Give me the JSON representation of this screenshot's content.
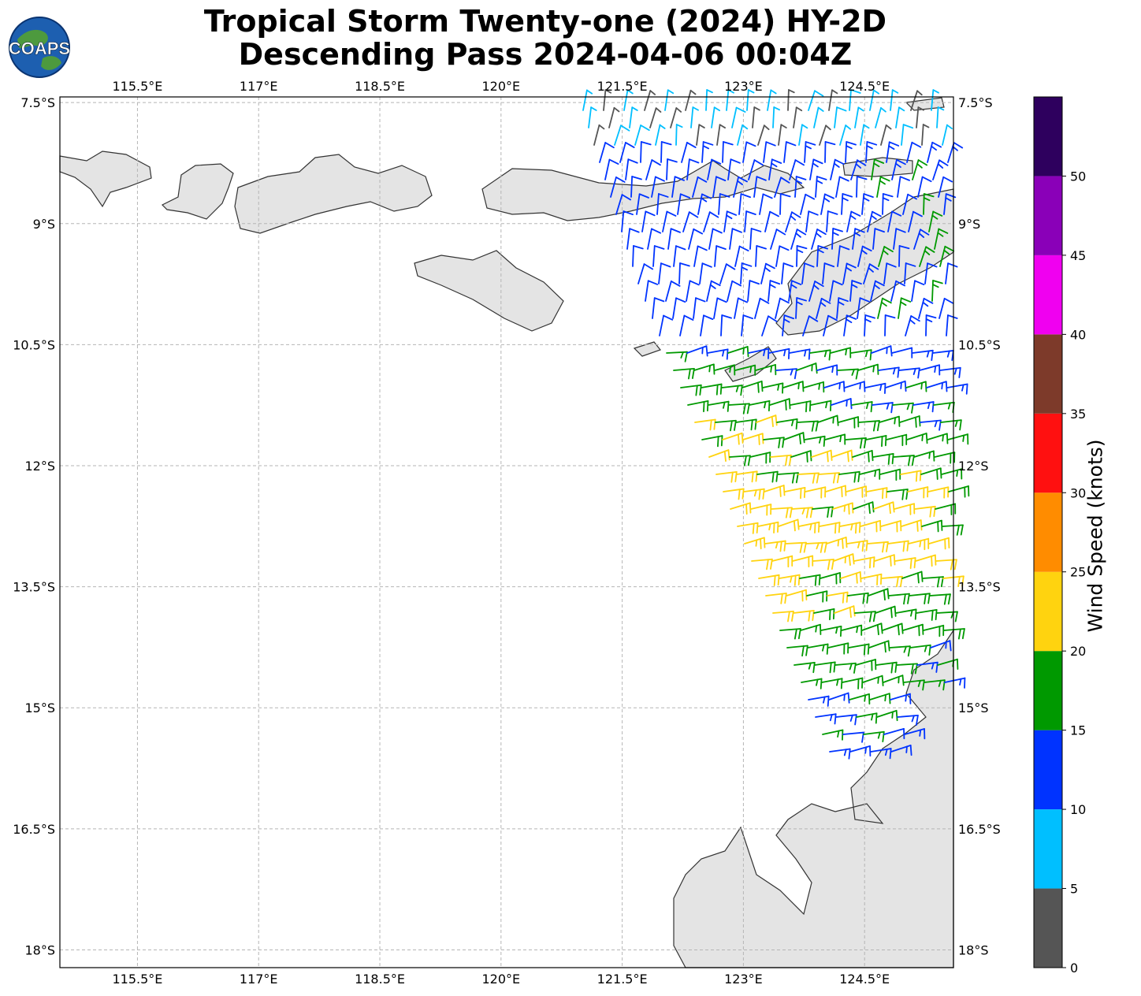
{
  "title": {
    "line1": "Tropical Storm Twenty-one (2024) HY-2D",
    "line2": "Descending Pass 2024-04-06 00:04Z"
  },
  "logo_text": "COAPS",
  "axes": {
    "lon_ticks": [
      "115.5°E",
      "117°E",
      "118.5°E",
      "120°E",
      "121.5°E",
      "123°E",
      "124.5°E"
    ],
    "lon_values": [
      115.5,
      117,
      118.5,
      120,
      121.5,
      123,
      124.5
    ],
    "lat_ticks": [
      "7.5°S",
      "9°S",
      "10.5°S",
      "12°S",
      "13.5°S",
      "15°S",
      "16.5°S",
      "18°S"
    ],
    "lat_values": [
      -7.5,
      -9,
      -10.5,
      -12,
      -13.5,
      -15,
      -16.5,
      -18
    ],
    "lon_range": [
      114.54,
      125.6
    ],
    "lat_range": [
      -7.43,
      -18.22
    ]
  },
  "colorbar": {
    "label": "Wind Speed (knots)",
    "tick_labels": [
      "0",
      "5",
      "10",
      "15",
      "20",
      "25",
      "30",
      "35",
      "40",
      "45",
      "50"
    ],
    "bins": [
      0,
      5,
      10,
      15,
      20,
      25,
      30,
      35,
      40,
      45,
      50,
      55
    ],
    "colors": [
      "#555555",
      "#00bfff",
      "#0033ff",
      "#009900",
      "#ffd30f",
      "#ff8c00",
      "#ff1010",
      "#7d3a2a",
      "#f000f0",
      "#8a00b8",
      "#2e005e"
    ]
  },
  "wind_field": {
    "description_colors": {
      "calm": "#555555",
      "light": "#00bfff",
      "moderate": "#0033ff",
      "fresh": "#009900",
      "strong": "#ffd30f"
    }
  }
}
